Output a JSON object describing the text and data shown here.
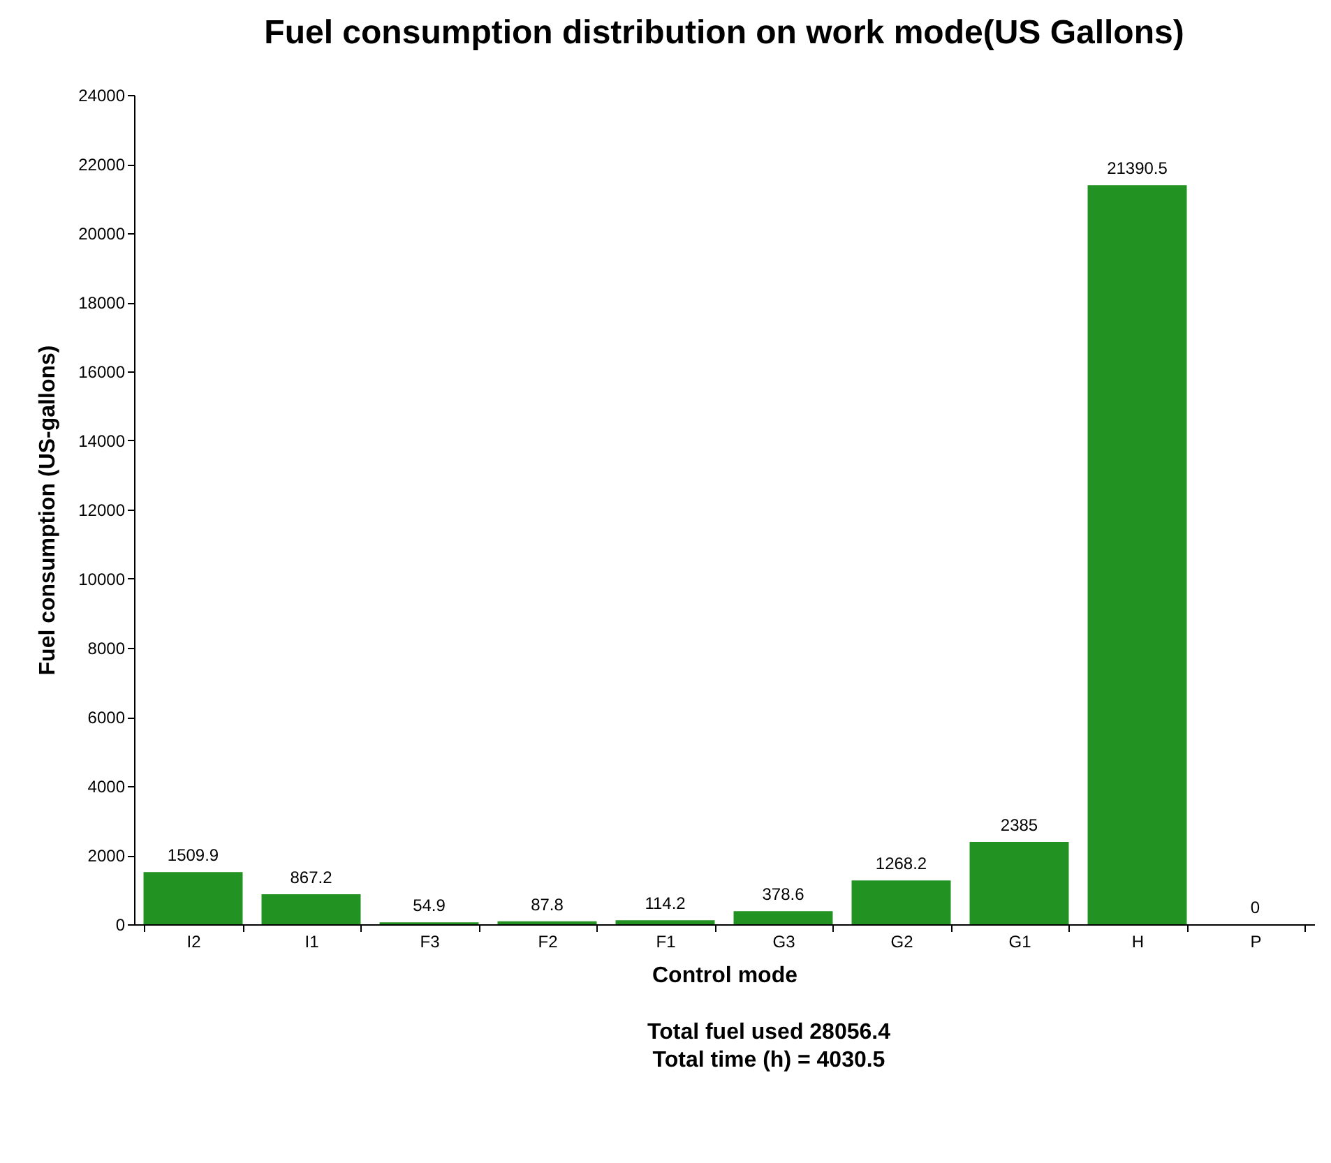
{
  "chart_data": {
    "type": "bar",
    "title": "Fuel consumption distribution on work mode(US Gallons)",
    "xlabel": "Control mode",
    "ylabel": "Fuel consumption (US-gallons)",
    "categories": [
      "I2",
      "I1",
      "F3",
      "F2",
      "F1",
      "G3",
      "G2",
      "G1",
      "H",
      "P"
    ],
    "values": [
      1509.9,
      867.2,
      54.9,
      87.8,
      114.2,
      378.6,
      1268.2,
      2385,
      21390.5,
      0
    ],
    "color": "#229222",
    "ylim": [
      0,
      24000
    ],
    "yticks": [
      0,
      2000,
      4000,
      6000,
      8000,
      10000,
      12000,
      14000,
      16000,
      18000,
      20000,
      22000,
      24000
    ],
    "grid": false,
    "data_labels": true,
    "annotations": [
      "Total fuel used 28056.4",
      "Total time (h) = 4030.5"
    ]
  }
}
